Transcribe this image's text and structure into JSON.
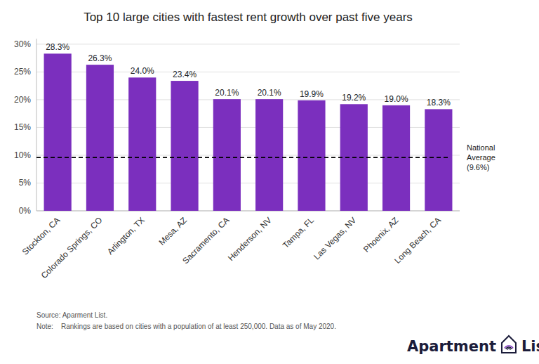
{
  "chart_data": {
    "type": "bar",
    "title": "Top 10 large cities with fastest rent growth over past five years",
    "categories": [
      "Stockton, CA",
      "Colorado Springs, CO",
      "Arlington, TX",
      "Mesa, AZ",
      "Sacramento, CA",
      "Henderson, NV",
      "Tampa, FL",
      "Las Vegas, NV",
      "Phoenix, AZ",
      "Long Beach, CA"
    ],
    "values": [
      28.3,
      26.3,
      24.0,
      23.4,
      20.1,
      20.1,
      19.9,
      19.2,
      19.0,
      18.3
    ],
    "value_labels": [
      "28.3%",
      "26.3%",
      "24.0%",
      "23.4%",
      "20.1%",
      "20.1%",
      "19.9%",
      "19.2%",
      "19.0%",
      "18.3%"
    ],
    "data_labels": true,
    "color": "#7B2FBE",
    "ylim": [
      0,
      31
    ],
    "yticks": [
      {
        "value": 0,
        "label": "0%"
      },
      {
        "value": 5,
        "label": "5%"
      },
      {
        "value": 10,
        "label": "10%"
      },
      {
        "value": 15,
        "label": "15%"
      },
      {
        "value": 20,
        "label": "20%"
      },
      {
        "value": 25,
        "label": "25%"
      },
      {
        "value": 30,
        "label": "30%"
      }
    ],
    "grid": true,
    "annotations": [
      {
        "y": 9.6,
        "text": "National\nAverage\n(9.6%)"
      }
    ],
    "source": "Source: Aparment List.",
    "note": "Note:    Rankings are based on cities with a population of at least 250,000. Data as of May 2020.",
    "logo": [
      "Apartment",
      "List"
    ]
  }
}
